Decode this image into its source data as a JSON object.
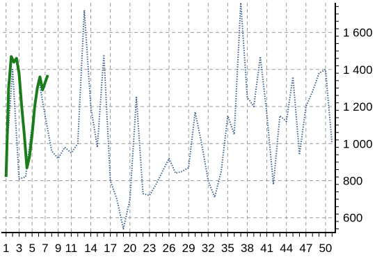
{
  "chart_data": {
    "type": "line",
    "title": "",
    "xlabel": "",
    "ylabel": "",
    "x_tick_labels": [
      "1",
      "3",
      "5",
      "7",
      "9",
      "11",
      "14",
      "17",
      "20",
      "23",
      "26",
      "29",
      "32",
      "35",
      "38",
      "41",
      "44",
      "47",
      "50"
    ],
    "x_tick_positions": [
      1,
      3,
      5,
      7,
      9,
      11,
      14,
      17,
      20,
      23,
      26,
      29,
      32,
      35,
      38,
      41,
      44,
      47,
      50
    ],
    "xlim": [
      0.5,
      51.5
    ],
    "y_tick_labels": [
      "600",
      "800",
      "1 000",
      "1 200",
      "1 400",
      "1 600"
    ],
    "y_tick_values": [
      600,
      800,
      1000,
      1200,
      1400,
      1600
    ],
    "ylim": [
      520,
      1760
    ],
    "grid": true,
    "legend": "none",
    "series": [
      {
        "style": "dotted",
        "color": "#3a5f8f",
        "x": [
          1,
          2,
          3,
          4,
          5,
          6,
          7,
          8,
          9,
          10,
          11,
          12,
          13,
          14,
          15,
          16,
          17,
          18,
          19,
          20,
          21,
          22,
          23,
          24,
          25,
          26,
          27,
          28,
          29,
          30,
          31,
          32,
          33,
          34,
          35,
          36,
          37,
          38,
          39,
          40,
          41,
          42,
          43,
          44,
          45,
          46,
          47,
          48,
          49,
          50,
          51
        ],
        "values": [
          900,
          1400,
          810,
          820,
          1100,
          1350,
          1150,
          960,
          920,
          980,
          950,
          1000,
          1720,
          1200,
          980,
          1480,
          800,
          700,
          540,
          700,
          1250,
          730,
          720,
          780,
          850,
          920,
          840,
          850,
          870,
          1170,
          1000,
          800,
          710,
          850,
          1150,
          1050,
          1760,
          1250,
          1200,
          1470,
          1160,
          780,
          1150,
          1120,
          1360,
          940,
          1200,
          1280,
          1380,
          1400,
          1000
        ]
      },
      {
        "style": "solid",
        "color": "#1b7c1b",
        "x": [
          1,
          1.4,
          1.8,
          2.2,
          2.6,
          3,
          3.4,
          3.8,
          4.2,
          4.6,
          5,
          5.4,
          5.8,
          6.2,
          6.6,
          7,
          7.4
        ],
        "values": [
          820,
          1300,
          1470,
          1440,
          1460,
          1380,
          1200,
          1050,
          870,
          930,
          1050,
          1200,
          1300,
          1360,
          1290,
          1330,
          1370
        ]
      }
    ]
  }
}
